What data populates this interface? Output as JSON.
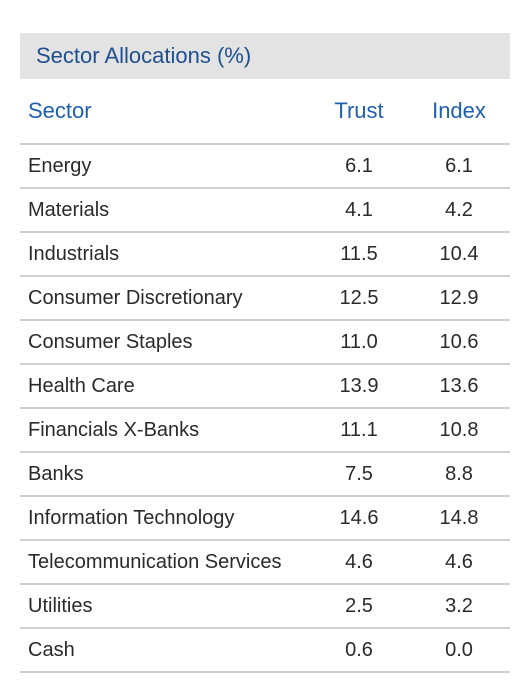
{
  "panel": {
    "title": "Sector Allocations (%)"
  },
  "table": {
    "headers": {
      "sector": "Sector",
      "trust": "Trust",
      "index": "Index"
    },
    "rows": [
      {
        "sector": "Energy",
        "trust": "6.1",
        "index": "6.1"
      },
      {
        "sector": "Materials",
        "trust": "4.1",
        "index": "4.2"
      },
      {
        "sector": "Industrials",
        "trust": "11.5",
        "index": "10.4"
      },
      {
        "sector": "Consumer Discretionary",
        "trust": "12.5",
        "index": "12.9"
      },
      {
        "sector": "Consumer Staples",
        "trust": "11.0",
        "index": "10.6"
      },
      {
        "sector": "Health Care",
        "trust": "13.9",
        "index": "13.6"
      },
      {
        "sector": "Financials X-Banks",
        "trust": "11.1",
        "index": "10.8"
      },
      {
        "sector": "Banks",
        "trust": "7.5",
        "index": "8.8"
      },
      {
        "sector": "Information Technology",
        "trust": "14.6",
        "index": "14.8"
      },
      {
        "sector": "Telecommunication Services",
        "trust": "4.6",
        "index": "4.6"
      },
      {
        "sector": "Utilities",
        "trust": "2.5",
        "index": "3.2"
      },
      {
        "sector": "Cash",
        "trust": "0.6",
        "index": "0.0"
      }
    ]
  },
  "colors": {
    "title_text": "#1f4f8f",
    "header_text": "#1f5fae",
    "title_bar_bg": "#e3e3e3",
    "row_divider": "#cfcfcf"
  }
}
